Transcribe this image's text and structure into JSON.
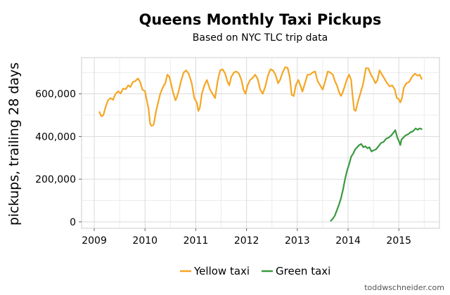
{
  "chart_data": {
    "type": "line",
    "title": "Queens Monthly Taxi Pickups",
    "subtitle": "Based on NYC TLC trip data",
    "xlabel": "",
    "ylabel": "pickups, trailing 28 days",
    "xlim": [
      2008.75,
      2015.8
    ],
    "ylim": [
      -30000,
      770000
    ],
    "x_ticks": [
      2009,
      2010,
      2011,
      2012,
      2013,
      2014,
      2015
    ],
    "x_tick_labels": [
      "2009",
      "2010",
      "2011",
      "2012",
      "2013",
      "2014",
      "2015"
    ],
    "y_ticks": [
      0,
      200000,
      400000,
      600000
    ],
    "y_tick_labels": [
      "0",
      "200,000",
      "400,000",
      "600,000"
    ],
    "grid": true,
    "legend_position": "bottom",
    "series": [
      {
        "name": "Yellow taxi",
        "color": "#f5a623",
        "points": [
          [
            2009.1,
            515000
          ],
          [
            2009.14,
            495000
          ],
          [
            2009.18,
            500000
          ],
          [
            2009.22,
            535000
          ],
          [
            2009.27,
            570000
          ],
          [
            2009.32,
            580000
          ],
          [
            2009.37,
            572000
          ],
          [
            2009.42,
            600000
          ],
          [
            2009.47,
            612000
          ],
          [
            2009.52,
            602000
          ],
          [
            2009.57,
            625000
          ],
          [
            2009.62,
            622000
          ],
          [
            2009.67,
            640000
          ],
          [
            2009.71,
            632000
          ],
          [
            2009.76,
            655000
          ],
          [
            2009.81,
            660000
          ],
          [
            2009.86,
            672000
          ],
          [
            2009.9,
            658000
          ],
          [
            2009.95,
            620000
          ],
          [
            2010.0,
            612000
          ],
          [
            2010.04,
            565000
          ],
          [
            2010.07,
            530000
          ],
          [
            2010.1,
            460000
          ],
          [
            2010.13,
            450000
          ],
          [
            2010.17,
            455000
          ],
          [
            2010.22,
            520000
          ],
          [
            2010.26,
            560000
          ],
          [
            2010.3,
            600000
          ],
          [
            2010.35,
            630000
          ],
          [
            2010.4,
            650000
          ],
          [
            2010.44,
            690000
          ],
          [
            2010.48,
            680000
          ],
          [
            2010.52,
            640000
          ],
          [
            2010.56,
            600000
          ],
          [
            2010.6,
            570000
          ],
          [
            2010.63,
            585000
          ],
          [
            2010.67,
            620000
          ],
          [
            2010.71,
            660000
          ],
          [
            2010.76,
            700000
          ],
          [
            2010.81,
            710000
          ],
          [
            2010.86,
            695000
          ],
          [
            2010.92,
            650000
          ],
          [
            2010.97,
            580000
          ],
          [
            2011.02,
            560000
          ],
          [
            2011.05,
            520000
          ],
          [
            2011.08,
            535000
          ],
          [
            2011.12,
            600000
          ],
          [
            2011.17,
            640000
          ],
          [
            2011.22,
            665000
          ],
          [
            2011.28,
            620000
          ],
          [
            2011.33,
            600000
          ],
          [
            2011.38,
            580000
          ],
          [
            2011.43,
            660000
          ],
          [
            2011.48,
            710000
          ],
          [
            2011.53,
            715000
          ],
          [
            2011.58,
            695000
          ],
          [
            2011.62,
            660000
          ],
          [
            2011.66,
            640000
          ],
          [
            2011.7,
            680000
          ],
          [
            2011.75,
            700000
          ],
          [
            2011.8,
            705000
          ],
          [
            2011.85,
            695000
          ],
          [
            2011.9,
            665000
          ],
          [
            2011.94,
            620000
          ],
          [
            2011.98,
            600000
          ],
          [
            2012.02,
            640000
          ],
          [
            2012.07,
            665000
          ],
          [
            2012.12,
            675000
          ],
          [
            2012.17,
            690000
          ],
          [
            2012.22,
            670000
          ],
          [
            2012.27,
            620000
          ],
          [
            2012.32,
            600000
          ],
          [
            2012.37,
            635000
          ],
          [
            2012.42,
            685000
          ],
          [
            2012.47,
            715000
          ],
          [
            2012.52,
            710000
          ],
          [
            2012.57,
            690000
          ],
          [
            2012.62,
            650000
          ],
          [
            2012.66,
            665000
          ],
          [
            2012.71,
            700000
          ],
          [
            2012.76,
            725000
          ],
          [
            2012.81,
            722000
          ],
          [
            2012.85,
            680000
          ],
          [
            2012.89,
            595000
          ],
          [
            2012.93,
            590000
          ],
          [
            2012.97,
            640000
          ],
          [
            2013.02,
            665000
          ],
          [
            2013.06,
            640000
          ],
          [
            2013.1,
            610000
          ],
          [
            2013.15,
            650000
          ],
          [
            2013.2,
            690000
          ],
          [
            2013.25,
            690000
          ],
          [
            2013.3,
            700000
          ],
          [
            2013.35,
            705000
          ],
          [
            2013.4,
            660000
          ],
          [
            2013.45,
            640000
          ],
          [
            2013.5,
            620000
          ],
          [
            2013.55,
            660000
          ],
          [
            2013.6,
            705000
          ],
          [
            2013.65,
            700000
          ],
          [
            2013.7,
            690000
          ],
          [
            2013.74,
            660000
          ],
          [
            2013.78,
            640000
          ],
          [
            2013.82,
            610000
          ],
          [
            2013.86,
            590000
          ],
          [
            2013.9,
            610000
          ],
          [
            2013.94,
            640000
          ],
          [
            2013.98,
            670000
          ],
          [
            2014.02,
            690000
          ],
          [
            2014.06,
            665000
          ],
          [
            2014.09,
            590000
          ],
          [
            2014.12,
            525000
          ],
          [
            2014.15,
            520000
          ],
          [
            2014.19,
            560000
          ],
          [
            2014.24,
            600000
          ],
          [
            2014.3,
            650000
          ],
          [
            2014.35,
            720000
          ],
          [
            2014.4,
            720000
          ],
          [
            2014.45,
            690000
          ],
          [
            2014.5,
            670000
          ],
          [
            2014.54,
            650000
          ],
          [
            2014.58,
            665000
          ],
          [
            2014.62,
            710000
          ],
          [
            2014.67,
            690000
          ],
          [
            2014.72,
            670000
          ],
          [
            2014.77,
            650000
          ],
          [
            2014.82,
            635000
          ],
          [
            2014.87,
            640000
          ],
          [
            2014.92,
            620000
          ],
          [
            2014.96,
            580000
          ],
          [
            2015.0,
            575000
          ],
          [
            2015.03,
            560000
          ],
          [
            2015.06,
            580000
          ],
          [
            2015.1,
            630000
          ],
          [
            2015.15,
            650000
          ],
          [
            2015.2,
            655000
          ],
          [
            2015.26,
            680000
          ],
          [
            2015.32,
            695000
          ],
          [
            2015.37,
            685000
          ],
          [
            2015.41,
            690000
          ],
          [
            2015.45,
            670000
          ]
        ]
      },
      {
        "name": "Green taxi",
        "color": "#3a9a3f",
        "points": [
          [
            2013.66,
            5000
          ],
          [
            2013.7,
            15000
          ],
          [
            2013.74,
            30000
          ],
          [
            2013.78,
            55000
          ],
          [
            2013.82,
            80000
          ],
          [
            2013.86,
            110000
          ],
          [
            2013.9,
            150000
          ],
          [
            2013.94,
            200000
          ],
          [
            2013.98,
            240000
          ],
          [
            2014.02,
            270000
          ],
          [
            2014.06,
            305000
          ],
          [
            2014.1,
            320000
          ],
          [
            2014.14,
            340000
          ],
          [
            2014.18,
            350000
          ],
          [
            2014.22,
            360000
          ],
          [
            2014.26,
            365000
          ],
          [
            2014.3,
            350000
          ],
          [
            2014.34,
            355000
          ],
          [
            2014.38,
            345000
          ],
          [
            2014.42,
            350000
          ],
          [
            2014.46,
            330000
          ],
          [
            2014.5,
            335000
          ],
          [
            2014.55,
            340000
          ],
          [
            2014.6,
            355000
          ],
          [
            2014.65,
            370000
          ],
          [
            2014.7,
            375000
          ],
          [
            2014.75,
            390000
          ],
          [
            2014.8,
            395000
          ],
          [
            2014.85,
            405000
          ],
          [
            2014.9,
            420000
          ],
          [
            2014.93,
            430000
          ],
          [
            2014.97,
            395000
          ],
          [
            2015.0,
            380000
          ],
          [
            2015.03,
            360000
          ],
          [
            2015.05,
            385000
          ],
          [
            2015.09,
            395000
          ],
          [
            2015.13,
            405000
          ],
          [
            2015.18,
            410000
          ],
          [
            2015.23,
            420000
          ],
          [
            2015.28,
            425000
          ],
          [
            2015.33,
            438000
          ],
          [
            2015.37,
            432000
          ],
          [
            2015.41,
            438000
          ],
          [
            2015.45,
            435000
          ]
        ]
      }
    ]
  },
  "credit": "toddwschneider.com"
}
